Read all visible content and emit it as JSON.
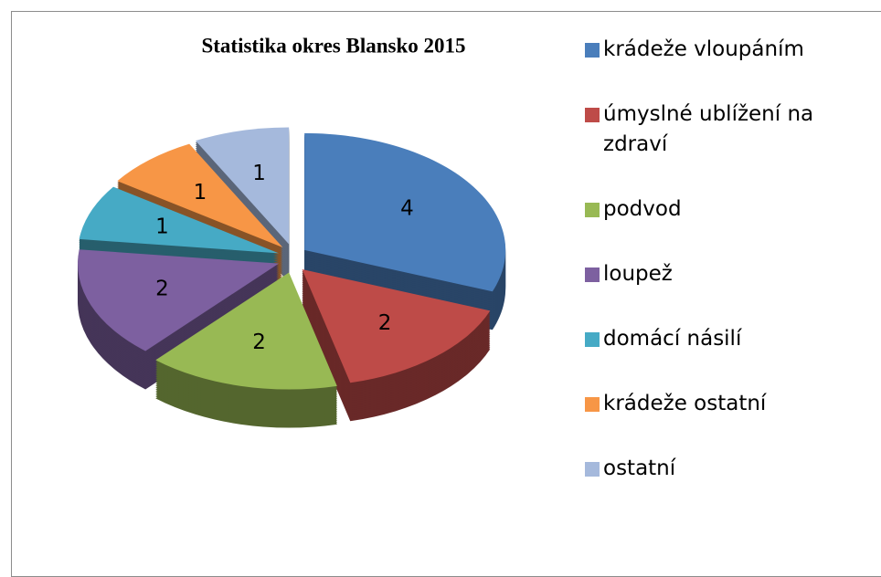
{
  "chart_data": {
    "type": "pie3d",
    "title": "Statistika  okres Blansko 2015",
    "categories": [
      "krádeže vloupáním",
      "úmyslné ublížení na zdraví",
      "podvod",
      "loupež",
      "domácí násilí",
      "krádeže ostatní",
      "ostatní"
    ],
    "values": [
      4,
      2,
      2,
      2,
      1,
      1,
      1
    ],
    "colors": [
      "#4a7ebb",
      "#be4b48",
      "#98b954",
      "#7d60a0",
      "#46aac5",
      "#f79646",
      "#a5b9dc"
    ],
    "legend": "right"
  }
}
